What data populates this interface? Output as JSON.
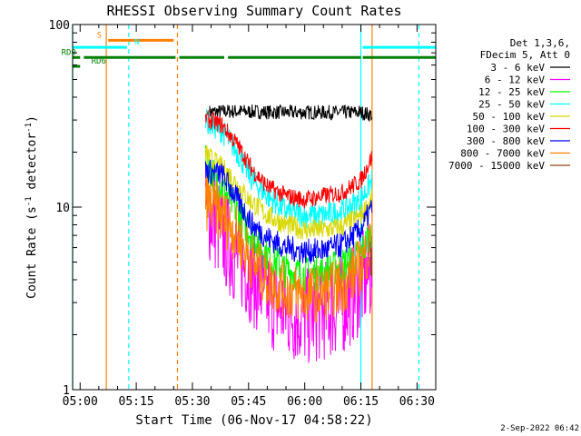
{
  "colors": {
    "background": "#ffffff",
    "axis": "#000000",
    "orange": "#ff7f00",
    "cyan": "#00ffff",
    "green": "#008000"
  },
  "footer_date": "2-Sep-2022 06:42",
  "chart_data": {
    "type": "line",
    "title": "RHESSI Observing Summary Count Rates",
    "xlabel": "Start Time (06-Nov-17 04:58:22)",
    "ylabel_main": "Count Rate (s",
    "ylabel_sup1": "-1",
    "ylabel_mid": " detector",
    "ylabel_sup2": "-1",
    "ylabel_end": ")",
    "yscale": "log",
    "ylim": [
      1,
      100
    ],
    "xlim_minutes": [
      -2,
      95
    ],
    "xticks": [
      {
        "label": "05:00",
        "min": 0
      },
      {
        "label": "05:15",
        "min": 15
      },
      {
        "label": "05:30",
        "min": 30
      },
      {
        "label": "05:45",
        "min": 45
      },
      {
        "label": "06:00",
        "min": 60
      },
      {
        "label": "06:15",
        "min": 75
      },
      {
        "label": "06:30",
        "min": 90
      }
    ],
    "yticks": [
      {
        "label": "1",
        "v": 1
      },
      {
        "label": "10",
        "v": 10
      },
      {
        "label": "100",
        "v": 100
      }
    ],
    "legend_header": [
      "Det 1,3,6,",
      "FDecim 5, Att 0"
    ],
    "series": [
      {
        "name": "3 - 6 keV",
        "color": "#000000",
        "anchors": [
          [
            33,
            33
          ],
          [
            40,
            33.5
          ],
          [
            55,
            33
          ],
          [
            65,
            33
          ],
          [
            75,
            33
          ],
          [
            78,
            32
          ]
        ],
        "noise": 0.04,
        "start": 34.5,
        "end": 78
      },
      {
        "name": "6 - 12 keV",
        "color": "#ff00ff",
        "anchors": [
          [
            33,
            10
          ],
          [
            35,
            9
          ],
          [
            40,
            6
          ],
          [
            45,
            4.5
          ],
          [
            50,
            3.2
          ],
          [
            55,
            2.7
          ],
          [
            60,
            2.5
          ],
          [
            65,
            2.7
          ],
          [
            70,
            2.9
          ],
          [
            75,
            3.8
          ],
          [
            78,
            4.5
          ]
        ],
        "noise": 0.28,
        "start": 33.5,
        "end": 78
      },
      {
        "name": "12 - 25 keV",
        "color": "#00ff00",
        "anchors": [
          [
            33,
            18
          ],
          [
            40,
            11
          ],
          [
            45,
            7.5
          ],
          [
            50,
            5.5
          ],
          [
            55,
            4.5
          ],
          [
            60,
            4.3
          ],
          [
            65,
            4.4
          ],
          [
            70,
            4.8
          ],
          [
            75,
            5.5
          ],
          [
            78,
            7.5
          ]
        ],
        "noise": 0.1,
        "start": 33.5,
        "end": 78
      },
      {
        "name": "25 - 50 keV",
        "color": "#00ffff",
        "anchors": [
          [
            33,
            30
          ],
          [
            38,
            26
          ],
          [
            42,
            20
          ],
          [
            46,
            14
          ],
          [
            50,
            11.5
          ],
          [
            55,
            9.5
          ],
          [
            60,
            9
          ],
          [
            65,
            9
          ],
          [
            70,
            9.5
          ],
          [
            75,
            11
          ],
          [
            78,
            14
          ]
        ],
        "noise": 0.07,
        "start": 33.5,
        "end": 78
      },
      {
        "name": "50 - 100 keV",
        "color": "#d8d800",
        "anchors": [
          [
            33,
            20
          ],
          [
            40,
            15
          ],
          [
            45,
            11
          ],
          [
            50,
            9
          ],
          [
            55,
            8
          ],
          [
            60,
            7.5
          ],
          [
            65,
            7.5
          ],
          [
            70,
            7.8
          ],
          [
            75,
            9
          ],
          [
            78,
            11
          ]
        ],
        "noise": 0.06,
        "start": 33.5,
        "end": 78
      },
      {
        "name": "100 - 300 keV",
        "color": "#ff0000",
        "anchors": [
          [
            33,
            31
          ],
          [
            38,
            28
          ],
          [
            42,
            22
          ],
          [
            46,
            16
          ],
          [
            50,
            13
          ],
          [
            55,
            11.5
          ],
          [
            60,
            11
          ],
          [
            65,
            11.5
          ],
          [
            70,
            12
          ],
          [
            75,
            14
          ],
          [
            78,
            19
          ]
        ],
        "noise": 0.05,
        "start": 33.5,
        "end": 78
      },
      {
        "name": "300 - 800 keV",
        "color": "#0000ff",
        "anchors": [
          [
            33,
            16
          ],
          [
            38,
            15
          ],
          [
            42,
            11
          ],
          [
            46,
            8
          ],
          [
            50,
            6.8
          ],
          [
            55,
            6
          ],
          [
            60,
            5.7
          ],
          [
            65,
            5.8
          ],
          [
            70,
            6.2
          ],
          [
            75,
            7.5
          ],
          [
            78,
            10
          ]
        ],
        "noise": 0.07,
        "start": 33.5,
        "end": 78
      },
      {
        "name": "800 - 7000 keV",
        "color": "#ff7f00",
        "anchors": [
          [
            33,
            11
          ],
          [
            38,
            9
          ],
          [
            42,
            7
          ],
          [
            46,
            5
          ],
          [
            50,
            4
          ],
          [
            55,
            3.5
          ],
          [
            60,
            3.3
          ],
          [
            65,
            3.4
          ],
          [
            70,
            3.7
          ],
          [
            75,
            4.8
          ],
          [
            78,
            6.5
          ]
        ],
        "noise": 0.16,
        "start": 33.5,
        "end": 78
      },
      {
        "name": "7000 - 15000 keV",
        "color": "#8b4513",
        "anchors": [
          [
            77,
            6
          ],
          [
            78,
            4
          ]
        ],
        "noise": 0.2,
        "start": 77.5,
        "end": 78
      }
    ],
    "flags": [
      {
        "label": "S",
        "color": "#ff7f00",
        "y_val": 82,
        "segments": [
          [
            7.5,
            25
          ]
        ],
        "label_min": 4.5
      },
      {
        "label": "N",
        "color": "#00ffff",
        "y_val": 75,
        "segments": [
          [
            -2,
            12.5
          ],
          [
            75.5,
            95
          ]
        ],
        "label_min": 14.5
      },
      {
        "label": "RD0",
        "color": "#008000",
        "y_val": 66,
        "segments": [
          [
            -2,
            0
          ],
          [
            1,
            25.5
          ],
          [
            26.5,
            38.5
          ],
          [
            39.5,
            75
          ],
          [
            75.5,
            95
          ]
        ],
        "label_min": -5
      },
      {
        "label": "RD6",
        "color": "#008000",
        "y_val": 59,
        "segments": [
          [
            -2,
            0
          ]
        ],
        "label_min": 3
      }
    ],
    "vlines": [
      {
        "min": 7,
        "color": "#ff7f00",
        "dash": false
      },
      {
        "min": 13,
        "color": "#00ffff",
        "dash": true
      },
      {
        "min": 26,
        "color": "#ff7f00",
        "dash": true
      },
      {
        "min": 75,
        "color": "#00ffff",
        "dash": false
      },
      {
        "min": 78,
        "color": "#ff7f00",
        "dash": false
      },
      {
        "min": 90.5,
        "color": "#00ffff",
        "dash": true
      },
      {
        "min": -2,
        "color": "#00ffff",
        "dash": false
      }
    ]
  }
}
